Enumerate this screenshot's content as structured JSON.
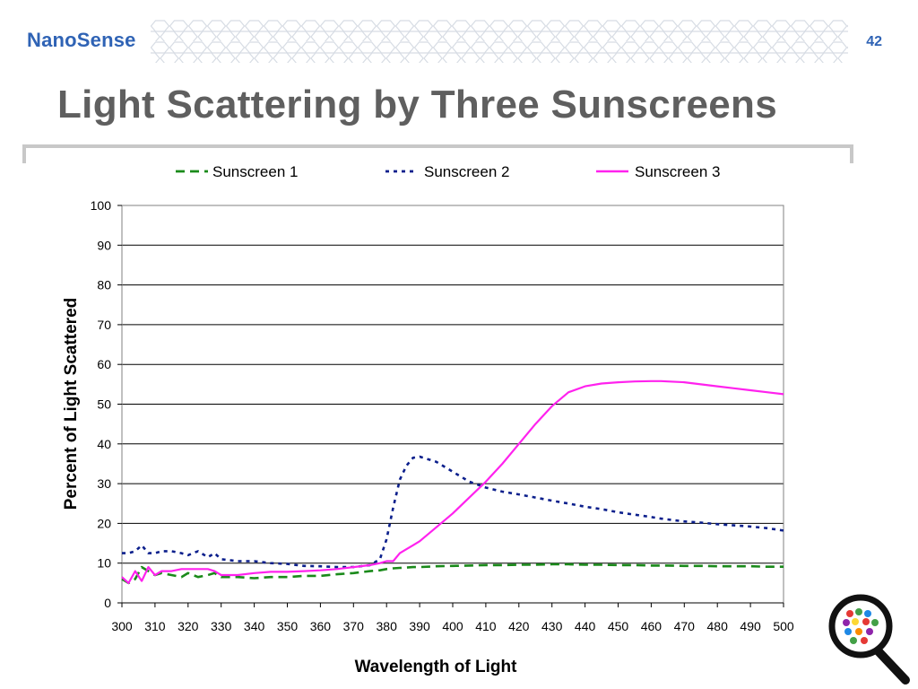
{
  "header": {
    "logo": "NanoSense",
    "slide_number": "42",
    "title": "Light Scattering by Three Sunscreens"
  },
  "colors": {
    "brand": "#2f63b5",
    "title": "#5f5f5f",
    "sunscreen1": "#1a8a1a",
    "sunscreen2": "#0b1f8c",
    "sunscreen3": "#ff22ee"
  },
  "icons": {
    "corner": "magnifier-icon"
  },
  "chart_data": {
    "type": "line",
    "xlabel": "Wavelength of Light",
    "ylabel": "Percent of Light Scattered",
    "xlim": [
      300,
      500
    ],
    "ylim": [
      0,
      100
    ],
    "xticks": [
      300,
      310,
      320,
      330,
      340,
      350,
      360,
      370,
      380,
      390,
      400,
      410,
      420,
      430,
      440,
      450,
      460,
      470,
      480,
      490,
      500
    ],
    "yticks": [
      0,
      10,
      20,
      30,
      40,
      50,
      60,
      70,
      80,
      90,
      100
    ],
    "grid": "horizontal",
    "legend_position": "top",
    "x": [
      300,
      302,
      304,
      306,
      308,
      310,
      312,
      315,
      318,
      320,
      323,
      326,
      328,
      330,
      335,
      340,
      345,
      350,
      355,
      360,
      365,
      370,
      375,
      378,
      380,
      382,
      384,
      386,
      388,
      390,
      395,
      400,
      405,
      410,
      415,
      420,
      425,
      430,
      435,
      440,
      445,
      450,
      455,
      460,
      463,
      465,
      470,
      475,
      480,
      485,
      490,
      495,
      500
    ],
    "series": [
      {
        "name": "Sunscreen 1",
        "style": "dashed",
        "color": "#1a8a1a",
        "values": [
          6,
          5,
          6,
          9,
          8,
          7,
          7.5,
          7,
          6.5,
          7.5,
          6.5,
          7,
          7.5,
          6.5,
          6.5,
          6.2,
          6.5,
          6.5,
          6.8,
          6.8,
          7.2,
          7.5,
          8,
          8.2,
          8.5,
          8.7,
          8.8,
          8.9,
          9,
          9,
          9.2,
          9.3,
          9.4,
          9.5,
          9.5,
          9.6,
          9.6,
          9.7,
          9.7,
          9.6,
          9.6,
          9.5,
          9.5,
          9.4,
          9.4,
          9.4,
          9.3,
          9.3,
          9.2,
          9.2,
          9.2,
          9.1,
          9.1
        ]
      },
      {
        "name": "Sunscreen 2",
        "style": "dotted",
        "color": "#0b1f8c",
        "values": [
          12.5,
          12.5,
          13,
          14.5,
          12.5,
          12.5,
          13,
          13,
          12.5,
          12,
          13,
          11.5,
          12.5,
          11,
          10.5,
          10.5,
          10,
          9.8,
          9.3,
          9.2,
          9.0,
          9.0,
          9.5,
          11,
          16,
          24,
          31,
          34.5,
          36.5,
          36.8,
          35.5,
          33,
          30.5,
          29,
          28,
          27.3,
          26.5,
          25.7,
          25,
          24.2,
          23.6,
          22.8,
          22.2,
          21.6,
          21.2,
          21,
          20.5,
          20.2,
          19.8,
          19.5,
          19.2,
          18.8,
          18.2
        ]
      },
      {
        "name": "Sunscreen 3",
        "style": "solid",
        "color": "#ff22ee",
        "values": [
          6.5,
          5,
          8,
          5.5,
          9,
          7,
          8,
          8,
          8.5,
          8.5,
          8.5,
          8.5,
          8,
          7,
          7,
          7.5,
          7.8,
          7.8,
          8,
          8.2,
          8.5,
          9,
          9.5,
          10,
          10.5,
          10.5,
          12.5,
          13.5,
          14.5,
          15.5,
          19,
          22.5,
          26.5,
          30.5,
          35,
          40,
          45,
          49.5,
          53,
          54.5,
          55.2,
          55.5,
          55.7,
          55.8,
          55.8,
          55.7,
          55.5,
          55,
          54.5,
          54,
          53.5,
          53,
          52.5
        ]
      }
    ]
  }
}
